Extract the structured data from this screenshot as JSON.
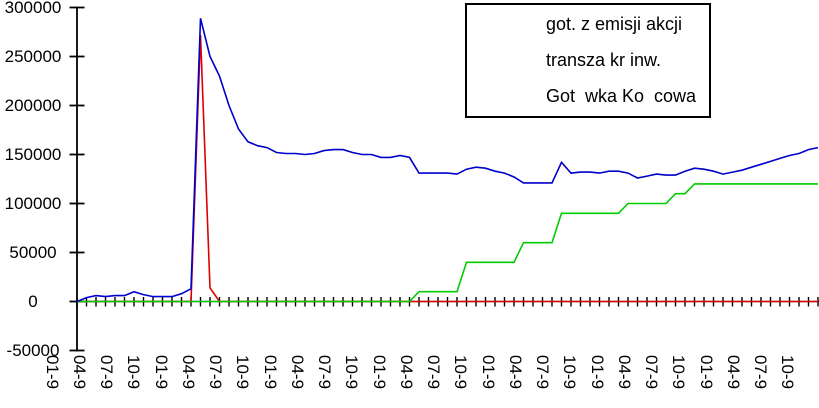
{
  "chart_data": {
    "type": "line",
    "title": "",
    "xlabel": "",
    "ylabel": "",
    "grid": false,
    "legend_position": "top-right",
    "y_axis": {
      "min": -50000,
      "max": 300000,
      "tick_step": 50000,
      "tick_labels": [
        "300000",
        "250000",
        "200000",
        "150000",
        "100000",
        "50000",
        "0",
        "-50000"
      ]
    },
    "x_axis": {
      "unit": "months",
      "months_shown": 79,
      "quarter_labels": [
        "01-9",
        "04-9",
        "07-9",
        "10-9",
        "01-9",
        "04-9",
        "07-9",
        "10-9",
        "01-9",
        "04-9",
        "07-9",
        "10-9",
        "01-9",
        "04-9",
        "07-9",
        "10-9",
        "01-9",
        "04-9",
        "07-9",
        "10-9",
        "01-9",
        "04-9",
        "07-9",
        "10-9",
        "01-9",
        "04-9",
        "07-9",
        "10-9"
      ]
    },
    "series": [
      {
        "name": "got. z emisji akcji",
        "color": "#dd0000",
        "values": [
          0,
          0,
          0,
          0,
          0,
          0,
          0,
          0,
          0,
          0,
          0,
          0,
          0,
          272000,
          14000,
          0,
          0,
          0,
          0,
          0,
          0,
          0,
          0,
          0,
          0,
          0,
          0,
          0,
          0,
          0,
          0,
          0,
          0,
          0,
          0,
          0,
          0,
          0,
          0,
          0,
          0,
          0,
          0,
          0,
          0,
          0,
          0,
          0,
          0,
          0,
          0,
          0,
          0,
          0,
          0,
          0,
          0,
          0,
          0,
          0,
          0,
          0,
          0,
          0,
          0,
          0,
          0,
          0,
          0,
          0,
          0,
          0,
          0,
          0,
          0,
          0,
          0,
          0,
          0
        ]
      },
      {
        "name": "transza kr inw.",
        "color": "#00cc00",
        "values": [
          0,
          0,
          0,
          0,
          0,
          0,
          0,
          0,
          0,
          0,
          0,
          0,
          0,
          0,
          0,
          0,
          0,
          0,
          0,
          0,
          0,
          0,
          0,
          0,
          0,
          0,
          0,
          0,
          0,
          0,
          0,
          0,
          0,
          0,
          0,
          0,
          10000,
          10000,
          10000,
          10000,
          10000,
          40000,
          40000,
          40000,
          40000,
          40000,
          40000,
          60000,
          60000,
          60000,
          60000,
          90000,
          90000,
          90000,
          90000,
          90000,
          90000,
          90000,
          100000,
          100000,
          100000,
          100000,
          100000,
          110000,
          110000,
          120000,
          120000,
          120000,
          120000,
          120000,
          120000,
          120000,
          120000,
          120000,
          120000,
          120000,
          120000,
          120000,
          120000
        ]
      },
      {
        "name": "Got  wka Ko  cowa",
        "color": "#0000cc",
        "values": [
          0,
          4000,
          6000,
          5000,
          6000,
          6000,
          10000,
          7000,
          5000,
          5000,
          5000,
          8000,
          13000,
          289000,
          250000,
          230000,
          200000,
          176000,
          163000,
          159000,
          157000,
          152000,
          151000,
          151000,
          150000,
          151000,
          154000,
          155000,
          155000,
          152000,
          150000,
          150000,
          147000,
          147000,
          149000,
          147000,
          131000,
          131000,
          131000,
          131000,
          130000,
          135000,
          137000,
          136000,
          133000,
          131000,
          127000,
          121000,
          121000,
          121000,
          121000,
          142000,
          131000,
          132000,
          132000,
          131000,
          133000,
          133000,
          131000,
          126000,
          128000,
          130000,
          129000,
          129000,
          133000,
          136000,
          135000,
          133000,
          130000,
          132000,
          134000,
          137000,
          140000,
          143000,
          146000,
          149000,
          151000,
          155000,
          157000
        ]
      }
    ]
  }
}
